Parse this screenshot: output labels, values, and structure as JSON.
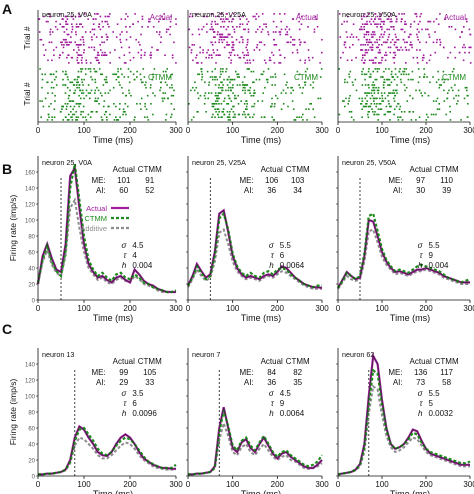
{
  "colors": {
    "actual": "#a01c9c",
    "ctmm": "#1e8a1e",
    "additive": "#8c8c8c",
    "axis": "#111111"
  },
  "panel_letters": [
    "A",
    "B",
    "C"
  ],
  "chart_data": [
    {
      "type": "scatter",
      "panel": "A",
      "rows": [
        {
          "row": "A",
          "ylabel": "Trial #",
          "xlabel": "Time (ms)",
          "xlim": [
            0,
            300
          ],
          "xticks": [
            0,
            100,
            200,
            300
          ],
          "series_labels": {
            "actual": "Actual",
            "ctmm": "CTMM"
          },
          "subplots": [
            {
              "title": "neuron 25, V0A",
              "show_ylabel": true,
              "density": [
                0.3,
                1.0,
                0.55,
                0.35,
                0.3,
                0.25
              ]
            },
            {
              "title": "neuron 25, V25A",
              "show_ylabel": false,
              "density": [
                0.3,
                1.0,
                0.55,
                0.35,
                0.3,
                0.25
              ]
            },
            {
              "title": "neuron 25, V50A",
              "show_ylabel": false,
              "density": [
                0.3,
                1.0,
                0.55,
                0.35,
                0.3,
                0.25
              ]
            }
          ]
        }
      ]
    },
    {
      "type": "line",
      "panel": "B",
      "ylabel": "Firing rate (imp/s)",
      "xlabel": "Time (ms)",
      "xlim": [
        0,
        300
      ],
      "ylim": [
        0,
        180
      ],
      "xticks": [
        0,
        100,
        200,
        300
      ],
      "yticks": [
        0,
        20,
        40,
        60,
        80,
        100,
        120,
        140,
        160
      ],
      "legend": [
        "Actual",
        "CTMM",
        "Additive"
      ],
      "table_header": [
        "Actual",
        "CTMM"
      ],
      "subplots": [
        {
          "title": "neuron 25, V0A",
          "stats": [
            {
              "label": "ME:",
              "actual": "101",
              "ctmm": "91"
            },
            {
              "label": "AI:",
              "actual": "60",
              "ctmm": "52"
            }
          ],
          "params": [
            {
              "sym": "σ",
              "val": "4.5"
            },
            {
              "sym": "τ",
              "val": "4"
            },
            {
              "sym": "h",
              "val": "0.004"
            }
          ],
          "vline": 50,
          "x": [
            0,
            10,
            20,
            30,
            40,
            50,
            60,
            70,
            80,
            90,
            100,
            110,
            120,
            130,
            140,
            150,
            160,
            170,
            180,
            190,
            200,
            210,
            220,
            230,
            240,
            250,
            260,
            270,
            280,
            290,
            300
          ],
          "actual": [
            20,
            55,
            70,
            52,
            38,
            35,
            70,
            155,
            165,
            115,
            70,
            45,
            35,
            28,
            30,
            25,
            22,
            28,
            30,
            25,
            22,
            38,
            32,
            24,
            20,
            18,
            14,
            12,
            10,
            10,
            10
          ],
          "ctmm": [
            22,
            50,
            68,
            48,
            36,
            30,
            62,
            140,
            170,
            125,
            80,
            50,
            38,
            30,
            34,
            28,
            24,
            32,
            34,
            28,
            26,
            32,
            28,
            22,
            20,
            16,
            14,
            12,
            10,
            10,
            12
          ],
          "additive": [
            20,
            48,
            62,
            44,
            34,
            30,
            55,
            115,
            125,
            90,
            60,
            40,
            32,
            25,
            28,
            22,
            20,
            25,
            28,
            24,
            22,
            30,
            26,
            20,
            18,
            16,
            12,
            10,
            10,
            10,
            10
          ]
        },
        {
          "title": "neuron 25, V25A",
          "stats": [
            {
              "label": "ME:",
              "actual": "106",
              "ctmm": "103"
            },
            {
              "label": "AI:",
              "actual": "36",
              "ctmm": "34"
            }
          ],
          "params": [
            {
              "sym": "σ",
              "val": "5.5"
            },
            {
              "sym": "τ",
              "val": "6"
            },
            {
              "sym": "h",
              "val": "0.0064"
            }
          ],
          "vline": 50,
          "x": [
            0,
            10,
            20,
            30,
            40,
            50,
            60,
            70,
            80,
            90,
            100,
            110,
            120,
            130,
            140,
            150,
            160,
            170,
            180,
            190,
            200,
            210,
            220,
            230,
            240,
            250,
            260,
            270,
            280,
            290,
            300
          ],
          "actual": [
            18,
            30,
            45,
            36,
            28,
            32,
            60,
            108,
            112,
            85,
            55,
            40,
            32,
            28,
            30,
            28,
            26,
            30,
            32,
            30,
            35,
            42,
            40,
            34,
            28,
            24,
            20,
            18,
            16,
            16,
            15
          ],
          "ctmm": [
            18,
            28,
            42,
            34,
            26,
            30,
            56,
            102,
            108,
            88,
            58,
            42,
            34,
            30,
            34,
            30,
            28,
            34,
            36,
            32,
            38,
            40,
            38,
            32,
            28,
            24,
            20,
            18,
            16,
            18,
            18
          ],
          "additive": [
            16,
            26,
            38,
            30,
            24,
            28,
            48,
            84,
            88,
            70,
            48,
            36,
            30,
            26,
            28,
            26,
            24,
            28,
            30,
            28,
            32,
            36,
            34,
            30,
            26,
            22,
            18,
            16,
            14,
            14,
            14
          ]
        },
        {
          "title": "neuron 25, V50A",
          "stats": [
            {
              "label": "ME:",
              "actual": "97",
              "ctmm": "110"
            },
            {
              "label": "AI:",
              "actual": "30",
              "ctmm": "39"
            }
          ],
          "params": [
            {
              "sym": "σ",
              "val": "5.5"
            },
            {
              "sym": "τ",
              "val": "9"
            },
            {
              "sym": "h",
              "val": "0.004"
            }
          ],
          "vline": 50,
          "x": [
            0,
            10,
            20,
            30,
            40,
            50,
            60,
            70,
            80,
            90,
            100,
            110,
            120,
            130,
            140,
            150,
            160,
            170,
            180,
            190,
            200,
            210,
            220,
            230,
            240,
            250,
            260,
            270,
            280,
            290,
            300
          ],
          "actual": [
            15,
            25,
            35,
            30,
            26,
            28,
            55,
            100,
            98,
            80,
            60,
            48,
            40,
            35,
            36,
            34,
            32,
            35,
            38,
            38,
            40,
            38,
            36,
            34,
            30,
            28,
            26,
            24,
            22,
            22,
            22
          ],
          "ctmm": [
            15,
            24,
            34,
            30,
            26,
            30,
            58,
            105,
            108,
            86,
            64,
            50,
            42,
            36,
            38,
            36,
            34,
            38,
            42,
            44,
            42,
            40,
            38,
            36,
            32,
            28,
            26,
            24,
            22,
            24,
            26
          ],
          "additive": [
            14,
            22,
            30,
            26,
            24,
            26,
            48,
            86,
            88,
            72,
            54,
            44,
            38,
            32,
            34,
            32,
            30,
            33,
            36,
            36,
            38,
            36,
            34,
            32,
            28,
            26,
            24,
            22,
            20,
            20,
            20
          ]
        }
      ]
    },
    {
      "type": "line",
      "panel": "C",
      "ylabel": "Firing rate (imp/s)",
      "xlabel": "Time (ms)",
      "xlim": [
        0,
        300
      ],
      "ylim": [
        0,
        160
      ],
      "xticks": [
        0,
        100,
        200,
        300
      ],
      "yticks": [
        0,
        20,
        40,
        60,
        80,
        100,
        120,
        140
      ],
      "table_header": [
        "Actual",
        "CTMM"
      ],
      "subplots": [
        {
          "title": "neuron 13",
          "stats": [
            {
              "label": "ME:",
              "actual": "99",
              "ctmm": "105"
            },
            {
              "label": "AI:",
              "actual": "29",
              "ctmm": "33"
            }
          ],
          "params": [
            {
              "sym": "σ",
              "val": "3.5"
            },
            {
              "sym": "τ",
              "val": "6"
            },
            {
              "sym": "h",
              "val": "0.0096"
            }
          ],
          "vline": 80,
          "x": [
            0,
            10,
            20,
            30,
            40,
            50,
            60,
            70,
            80,
            90,
            100,
            110,
            120,
            130,
            140,
            150,
            160,
            170,
            180,
            190,
            200,
            210,
            220,
            230,
            240,
            250,
            260,
            270,
            280,
            290,
            300
          ],
          "actual": [
            2,
            2,
            3,
            3,
            4,
            5,
            8,
            20,
            48,
            62,
            58,
            48,
            40,
            30,
            26,
            25,
            30,
            40,
            48,
            52,
            48,
            40,
            30,
            22,
            18,
            14,
            12,
            10,
            10,
            9,
            9
          ],
          "ctmm": [
            2,
            2,
            3,
            3,
            4,
            5,
            8,
            18,
            44,
            58,
            60,
            52,
            44,
            34,
            28,
            26,
            30,
            38,
            44,
            48,
            46,
            40,
            32,
            24,
            18,
            15,
            12,
            10,
            10,
            10,
            14
          ],
          "additive": [
            2,
            2,
            3,
            3,
            4,
            5,
            7,
            16,
            38,
            48,
            46,
            40,
            34,
            26,
            22,
            22,
            26,
            32,
            38,
            42,
            40,
            34,
            26,
            20,
            16,
            12,
            10,
            9,
            8,
            8,
            8
          ]
        },
        {
          "title": "neuron 7",
          "stats": [
            {
              "label": "ME:",
              "actual": "84",
              "ctmm": "82"
            },
            {
              "label": "AI:",
              "actual": "36",
              "ctmm": "35"
            }
          ],
          "params": [
            {
              "sym": "σ",
              "val": "4.5"
            },
            {
              "sym": "τ",
              "val": "9"
            },
            {
              "sym": "h",
              "val": "0.0064"
            }
          ],
          "vline": 70,
          "x": [
            0,
            10,
            20,
            30,
            40,
            50,
            60,
            70,
            80,
            90,
            100,
            110,
            120,
            130,
            140,
            150,
            160,
            170,
            180,
            190,
            200,
            210,
            220,
            230,
            240,
            250,
            260,
            270,
            280,
            290,
            300
          ],
          "actual": [
            2,
            2,
            3,
            3,
            4,
            5,
            12,
            60,
            86,
            60,
            35,
            30,
            42,
            46,
            35,
            30,
            40,
            48,
            38,
            28,
            22,
            28,
            30,
            24,
            20,
            16,
            12,
            10,
            10,
            14,
            20
          ],
          "ctmm": [
            2,
            2,
            3,
            3,
            4,
            5,
            10,
            55,
            82,
            62,
            38,
            32,
            44,
            48,
            38,
            32,
            42,
            50,
            40,
            30,
            24,
            30,
            32,
            26,
            22,
            18,
            14,
            12,
            14,
            18,
            26
          ],
          "additive": [
            2,
            2,
            3,
            3,
            4,
            5,
            10,
            45,
            66,
            50,
            30,
            26,
            36,
            40,
            30,
            26,
            34,
            40,
            32,
            24,
            20,
            24,
            26,
            20,
            18,
            14,
            10,
            9,
            10,
            12,
            16
          ]
        },
        {
          "title": "neuron 62",
          "stats": [
            {
              "label": "ME:",
              "actual": "136",
              "ctmm": "117"
            },
            {
              "label": "AI:",
              "actual": "73",
              "ctmm": "58"
            }
          ],
          "params": [
            {
              "sym": "σ",
              "val": "5.5"
            },
            {
              "sym": "τ",
              "val": "5"
            },
            {
              "sym": "h",
              "val": "0.0032"
            }
          ],
          "vline": 70,
          "x": [
            0,
            10,
            20,
            30,
            40,
            50,
            60,
            70,
            80,
            90,
            100,
            110,
            120,
            130,
            140,
            150,
            160,
            170,
            180,
            190,
            200,
            210,
            220,
            230,
            240,
            250,
            260,
            270,
            280,
            290,
            300
          ],
          "actual": [
            2,
            3,
            4,
            5,
            8,
            15,
            40,
            100,
            150,
            140,
            95,
            60,
            40,
            34,
            36,
            40,
            48,
            58,
            56,
            44,
            34,
            28,
            26,
            24,
            22,
            20,
            18,
            16,
            14,
            14,
            14
          ],
          "ctmm": [
            2,
            3,
            4,
            5,
            8,
            14,
            36,
            90,
            132,
            128,
            90,
            58,
            40,
            34,
            36,
            40,
            46,
            54,
            52,
            42,
            34,
            30,
            28,
            26,
            24,
            22,
            20,
            18,
            16,
            16,
            18
          ],
          "additive": [
            2,
            3,
            4,
            5,
            7,
            12,
            30,
            78,
            112,
            108,
            76,
            50,
            36,
            30,
            32,
            36,
            42,
            48,
            46,
            38,
            30,
            26,
            24,
            22,
            20,
            18,
            16,
            14,
            12,
            12,
            12
          ]
        }
      ]
    }
  ]
}
